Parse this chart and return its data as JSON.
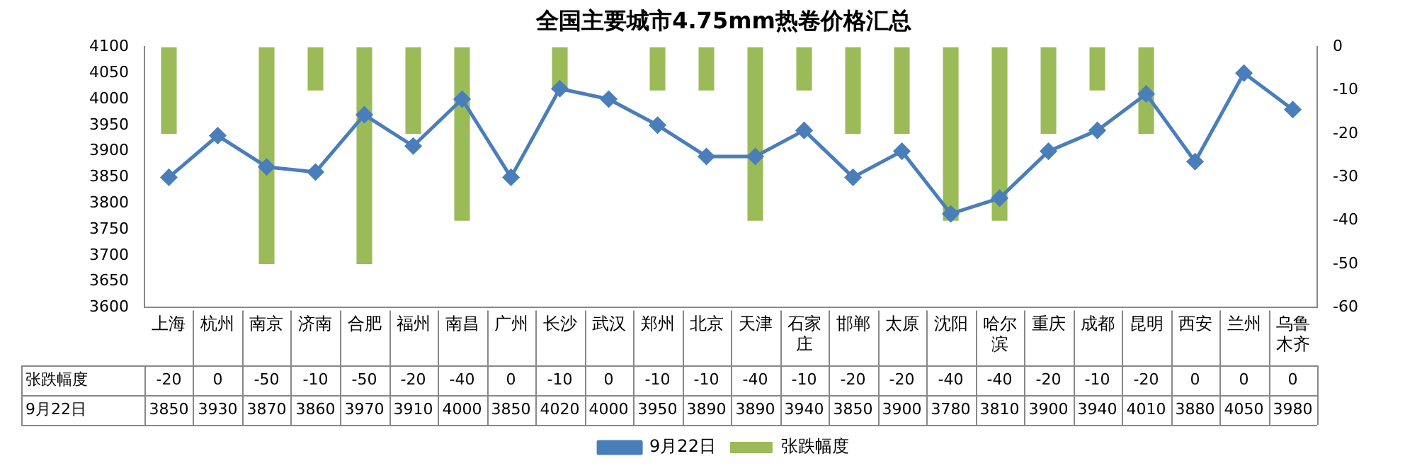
{
  "chart_data": {
    "type": "bar",
    "title": "全国主要城市4.75mm热卷价格汇总",
    "categories": [
      "上海",
      "杭州",
      "南京",
      "济南",
      "合肥",
      "福州",
      "南昌",
      "广州",
      "长沙",
      "武汉",
      "郑州",
      "北京",
      "天津",
      "石家庄",
      "邯郸",
      "太原",
      "沈阳",
      "哈尔滨",
      "重庆",
      "成都",
      "昆明",
      "西安",
      "兰州",
      "乌鲁木齐"
    ],
    "series": [
      {
        "name": "张跌幅度",
        "axis": "y2",
        "color": "#9bbb59",
        "values": [
          -20,
          0,
          -50,
          -10,
          -50,
          -20,
          -40,
          0,
          -10,
          0,
          -10,
          -10,
          -40,
          -10,
          -20,
          -20,
          -40,
          -40,
          -20,
          -10,
          -20,
          0,
          0,
          0
        ]
      },
      {
        "name": "9月22日",
        "type": "line",
        "color": "#4a7ebb",
        "values": [
          3850,
          3930,
          3870,
          3860,
          3970,
          3910,
          4000,
          3850,
          4020,
          4000,
          3950,
          3890,
          3890,
          3940,
          3850,
          3900,
          3780,
          3810,
          3900,
          3940,
          4010,
          3880,
          4050,
          3980
        ]
      }
    ],
    "ylim": [
      3600,
      4100
    ],
    "yticks": [
      3600,
      3650,
      3700,
      3750,
      3800,
      3850,
      3900,
      3950,
      4000,
      4050,
      4100
    ],
    "y2lim": [
      -60,
      0
    ],
    "y2ticks": [
      -60,
      -50,
      -40,
      -30,
      -20,
      -10,
      0
    ],
    "grid": false,
    "legend": "bottom",
    "marker": "diamond",
    "line_style": "solid",
    "data_labels": true
  }
}
